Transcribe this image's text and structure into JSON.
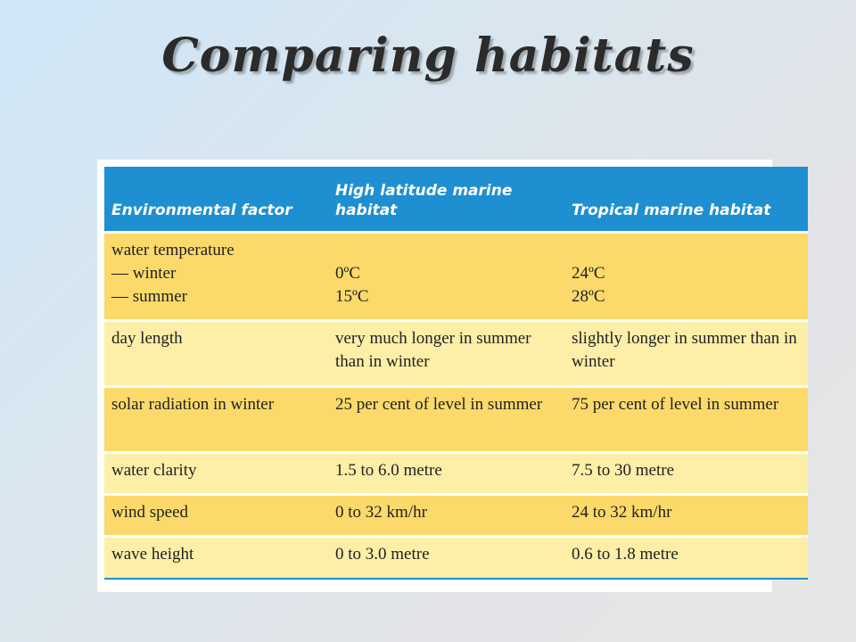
{
  "slide": {
    "title": "Comparing habitats"
  },
  "table": {
    "headers": [
      "Environmental factor",
      "High latitude marine habitat",
      "Tropical marine habitat"
    ],
    "temperature_row": {
      "label": "water temperature",
      "sub_winter": "— winter",
      "sub_summer": "— summer",
      "high_winter": "0ºC",
      "high_summer": "15ºC",
      "trop_winter": "24ºC",
      "trop_summer": "28ºC"
    },
    "rows": [
      {
        "factor": "day length",
        "high_latitude": "very much longer in summer than in winter",
        "tropical": "slightly longer in summer than in winter"
      },
      {
        "factor": "solar radiation in winter",
        "high_latitude": "25 per cent of level in summer",
        "tropical": "75 per cent of level in summer"
      },
      {
        "factor": "water clarity",
        "high_latitude": "1.5 to 6.0 metre",
        "tropical": "7.5 to 30 metre"
      },
      {
        "factor": "wind speed",
        "high_latitude": "0 to 32 km/hr",
        "tropical": "24 to 32 km/hr"
      },
      {
        "factor": "wave height",
        "high_latitude": "0 to 3.0 metre",
        "tropical": "0.6 to 1.8 metre"
      }
    ]
  },
  "colors": {
    "header_blue": "#1e8fd0",
    "row_dark": "#fbd96a",
    "row_light": "#fdeea8"
  }
}
